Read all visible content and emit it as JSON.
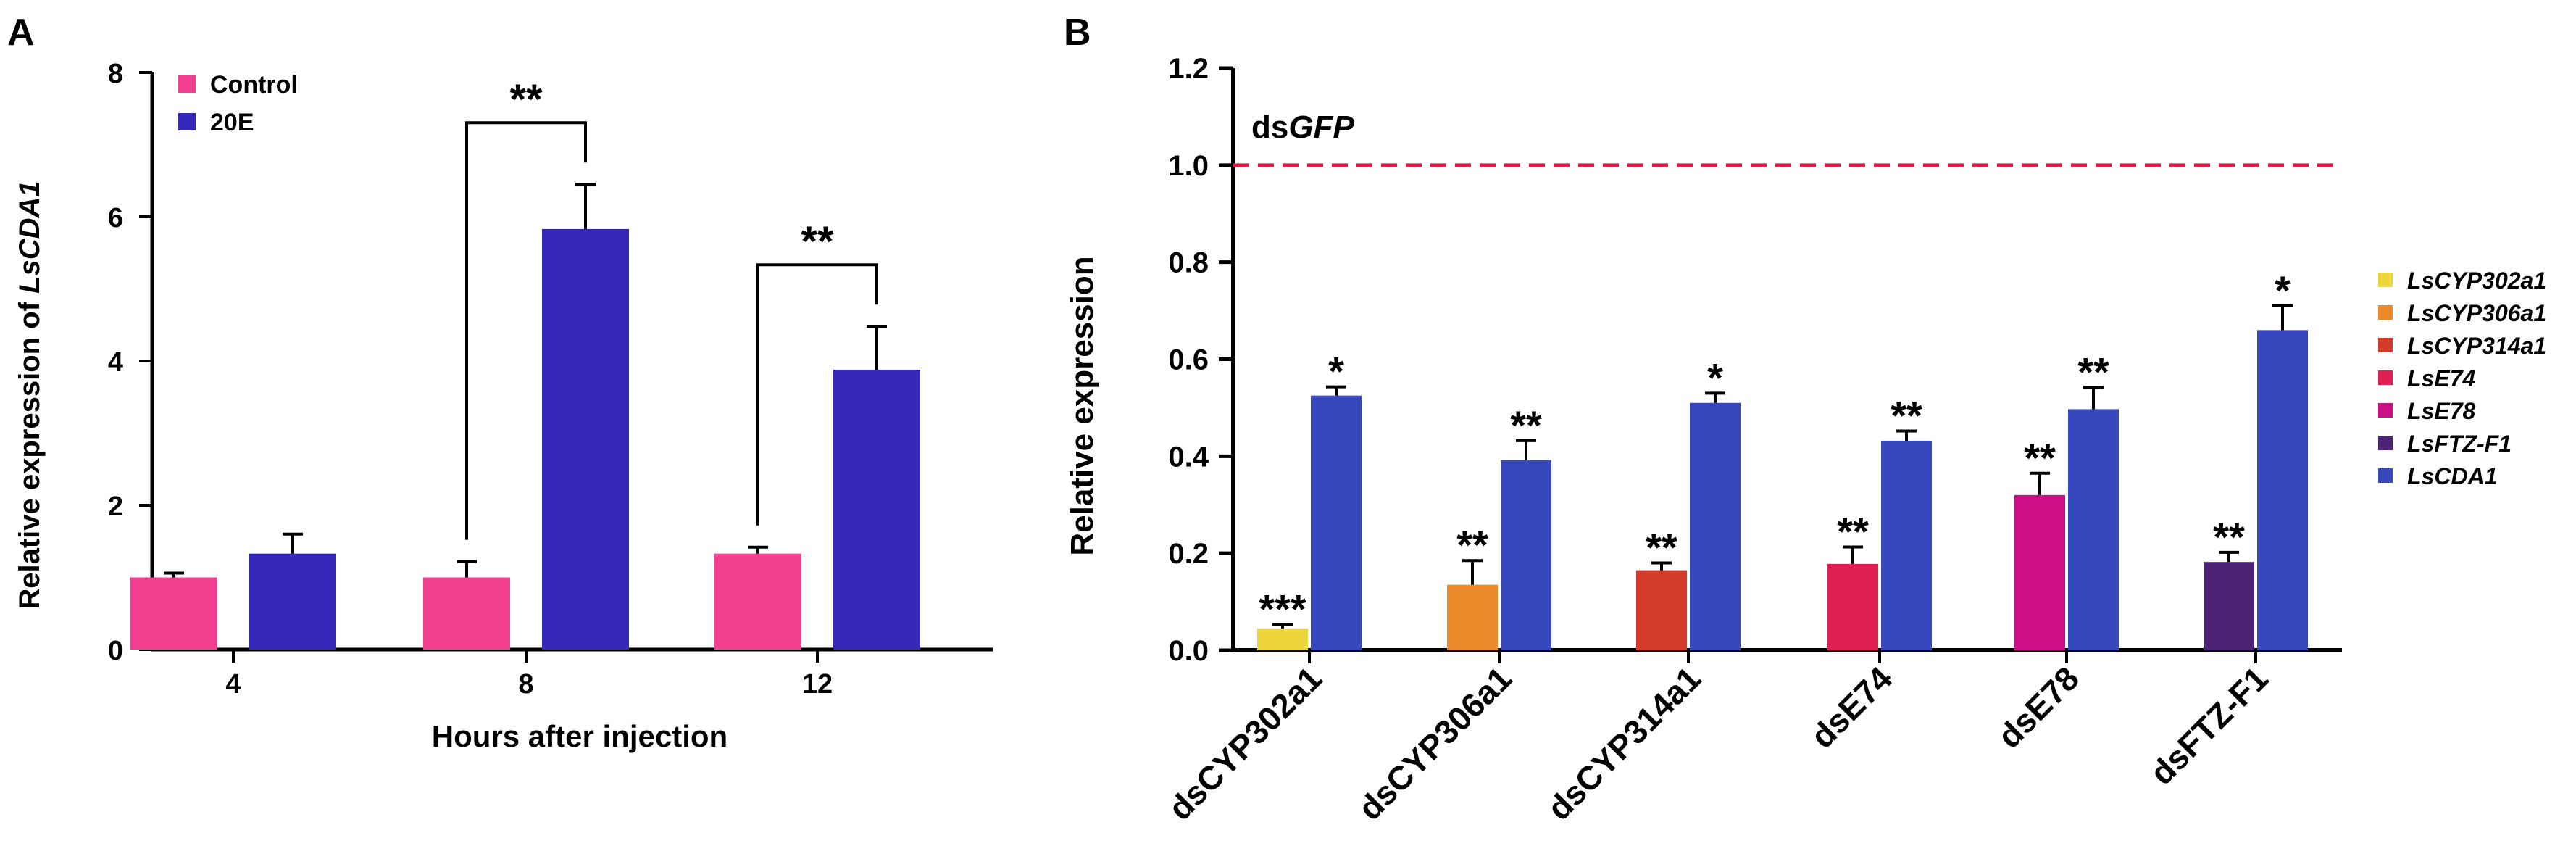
{
  "panels": {
    "a": {
      "letter": "A"
    },
    "b": {
      "letter": "B"
    }
  },
  "colors": {
    "control": "#f23f8f",
    "treated": "#3628b8",
    "b_cda1": "#3748bd",
    "ref_line": "#e8174a",
    "axis": "#000000"
  },
  "chart_data": [
    {
      "type": "bar",
      "ylabel": "Relative expression of LsCDA1",
      "ylabel_plain": "Relative expression of ",
      "ylabel_italic": "LsCDA1",
      "xlabel": "Hours after injection",
      "categories": [
        "4",
        "8",
        "12"
      ],
      "ylim": [
        0,
        8
      ],
      "yticks": [
        "0",
        "2",
        "4",
        "6",
        "8"
      ],
      "legend_position": "top-left",
      "series": [
        {
          "name": "Control",
          "values": [
            1.0,
            1.0,
            1.33
          ],
          "errors": [
            0.06,
            0.22,
            0.09
          ]
        },
        {
          "name": "20E",
          "values": [
            1.33,
            5.83,
            3.88
          ],
          "errors": [
            0.27,
            0.62,
            0.6
          ]
        }
      ],
      "significance": [
        {
          "category": "8",
          "label": "**"
        },
        {
          "category": "12",
          "label": "**"
        }
      ]
    },
    {
      "type": "bar",
      "ylabel": "Relative expression",
      "categories": [
        "dsCYP302a1",
        "dsCYP306a1",
        "dsCYP314a1",
        "dsE74",
        "dsE78",
        "dsFTZ-F1"
      ],
      "ylim": [
        0,
        1.2
      ],
      "yticks": [
        "0.0",
        "0.2",
        "0.4",
        "0.6",
        "0.8",
        "1.0",
        "1.2"
      ],
      "reference_line": {
        "value": 1.0,
        "label_plain": "ds",
        "label_italic": "GFP"
      },
      "legend_position": "right",
      "legend": [
        "LsCYP302a1",
        "LsCYP306a1",
        "LsCYP314a1",
        "LsE74",
        "LsE78",
        "LsFTZ-F1",
        "LsCDA1"
      ],
      "legend_colors": [
        "#ecd63c",
        "#ea8a2a",
        "#d23a2a",
        "#e01f52",
        "#cc0f86",
        "#4c2274",
        "#3748bd"
      ],
      "target_values": [
        0.045,
        0.135,
        0.165,
        0.178,
        0.32,
        0.182
      ],
      "target_errors": [
        0.008,
        0.05,
        0.015,
        0.035,
        0.045,
        0.02
      ],
      "target_sig": [
        "***",
        "**",
        "**",
        "**",
        "**",
        "**"
      ],
      "cda1_values": [
        0.525,
        0.392,
        0.51,
        0.432,
        0.497,
        0.66
      ],
      "cda1_errors": [
        0.018,
        0.04,
        0.02,
        0.02,
        0.045,
        0.05
      ],
      "cda1_sig": [
        "*",
        "**",
        "*",
        "**",
        "**",
        "*"
      ]
    }
  ]
}
